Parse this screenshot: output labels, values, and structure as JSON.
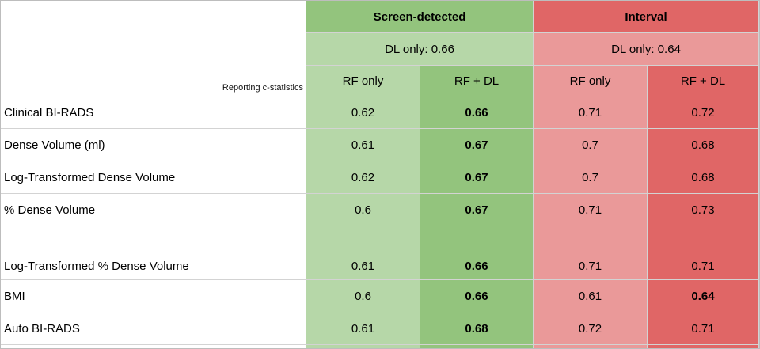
{
  "table": {
    "corner_note": "Reporting c-statistics",
    "group_headers": [
      {
        "label": "Screen-detected",
        "dl_only_label": "DL only: 0.66"
      },
      {
        "label": "Interval",
        "dl_only_label": "DL only: 0.64"
      }
    ],
    "sub_headers": [
      "RF only",
      "RF + DL",
      "RF only",
      "RF + DL"
    ],
    "rows": [
      {
        "label": "Clinical BI-RADS",
        "values": [
          "0.62",
          "0.66",
          "0.71",
          "0.72"
        ]
      },
      {
        "label": "Dense Volume (ml)",
        "values": [
          "0.61",
          "0.67",
          "0.7",
          "0.68"
        ]
      },
      {
        "label": "Log-Transformed Dense Volume",
        "values": [
          "0.62",
          "0.67",
          "0.7",
          "0.68"
        ]
      },
      {
        "label": "% Dense Volume",
        "values": [
          "0.6",
          "0.67",
          "0.71",
          "0.73"
        ]
      },
      {
        "label": "Log-Transformed % Dense Volume",
        "values": [
          "0.61",
          "0.66",
          "0.71",
          "0.71"
        ]
      },
      {
        "label": "BMI",
        "values": [
          "0.6",
          "0.66",
          "0.61",
          "0.64"
        ]
      },
      {
        "label": "Auto BI-RADS",
        "values": [
          "0.61",
          "0.68",
          "0.72",
          "0.71"
        ]
      }
    ],
    "colors": {
      "green_dark": "#93c47d",
      "green_light": "#b6d7a8",
      "red_dark": "#e06666",
      "red_light": "#ea9999",
      "gridline": "#d3d3d3"
    }
  },
  "chart_data": {
    "type": "table",
    "title": "Reporting c-statistics",
    "column_groups": [
      {
        "group": "Screen-detected",
        "dl_only": 0.66,
        "columns": [
          "RF only",
          "RF + DL"
        ]
      },
      {
        "group": "Interval",
        "dl_only": 0.64,
        "columns": [
          "RF only",
          "RF + DL"
        ]
      }
    ],
    "categories": [
      "Clinical BI-RADS",
      "Dense Volume (ml)",
      "Log-Transformed Dense Volume",
      "% Dense Volume",
      "Log-Transformed % Dense Volume",
      "BMI",
      "Auto BI-RADS"
    ],
    "series": [
      {
        "name": "Screen-detected RF only",
        "values": [
          0.62,
          0.61,
          0.62,
          0.6,
          0.61,
          0.6,
          0.61
        ]
      },
      {
        "name": "Screen-detected RF + DL",
        "values": [
          0.66,
          0.67,
          0.67,
          0.67,
          0.66,
          0.66,
          0.68
        ]
      },
      {
        "name": "Interval RF only",
        "values": [
          0.71,
          0.7,
          0.7,
          0.71,
          0.71,
          0.61,
          0.72
        ]
      },
      {
        "name": "Interval RF + DL",
        "values": [
          0.72,
          0.68,
          0.68,
          0.73,
          0.71,
          0.64,
          0.71
        ]
      }
    ],
    "emphasis_note": "All Screen-detected RF + DL values bold; Interval RF + DL value 0.64 (BMI) bold"
  }
}
